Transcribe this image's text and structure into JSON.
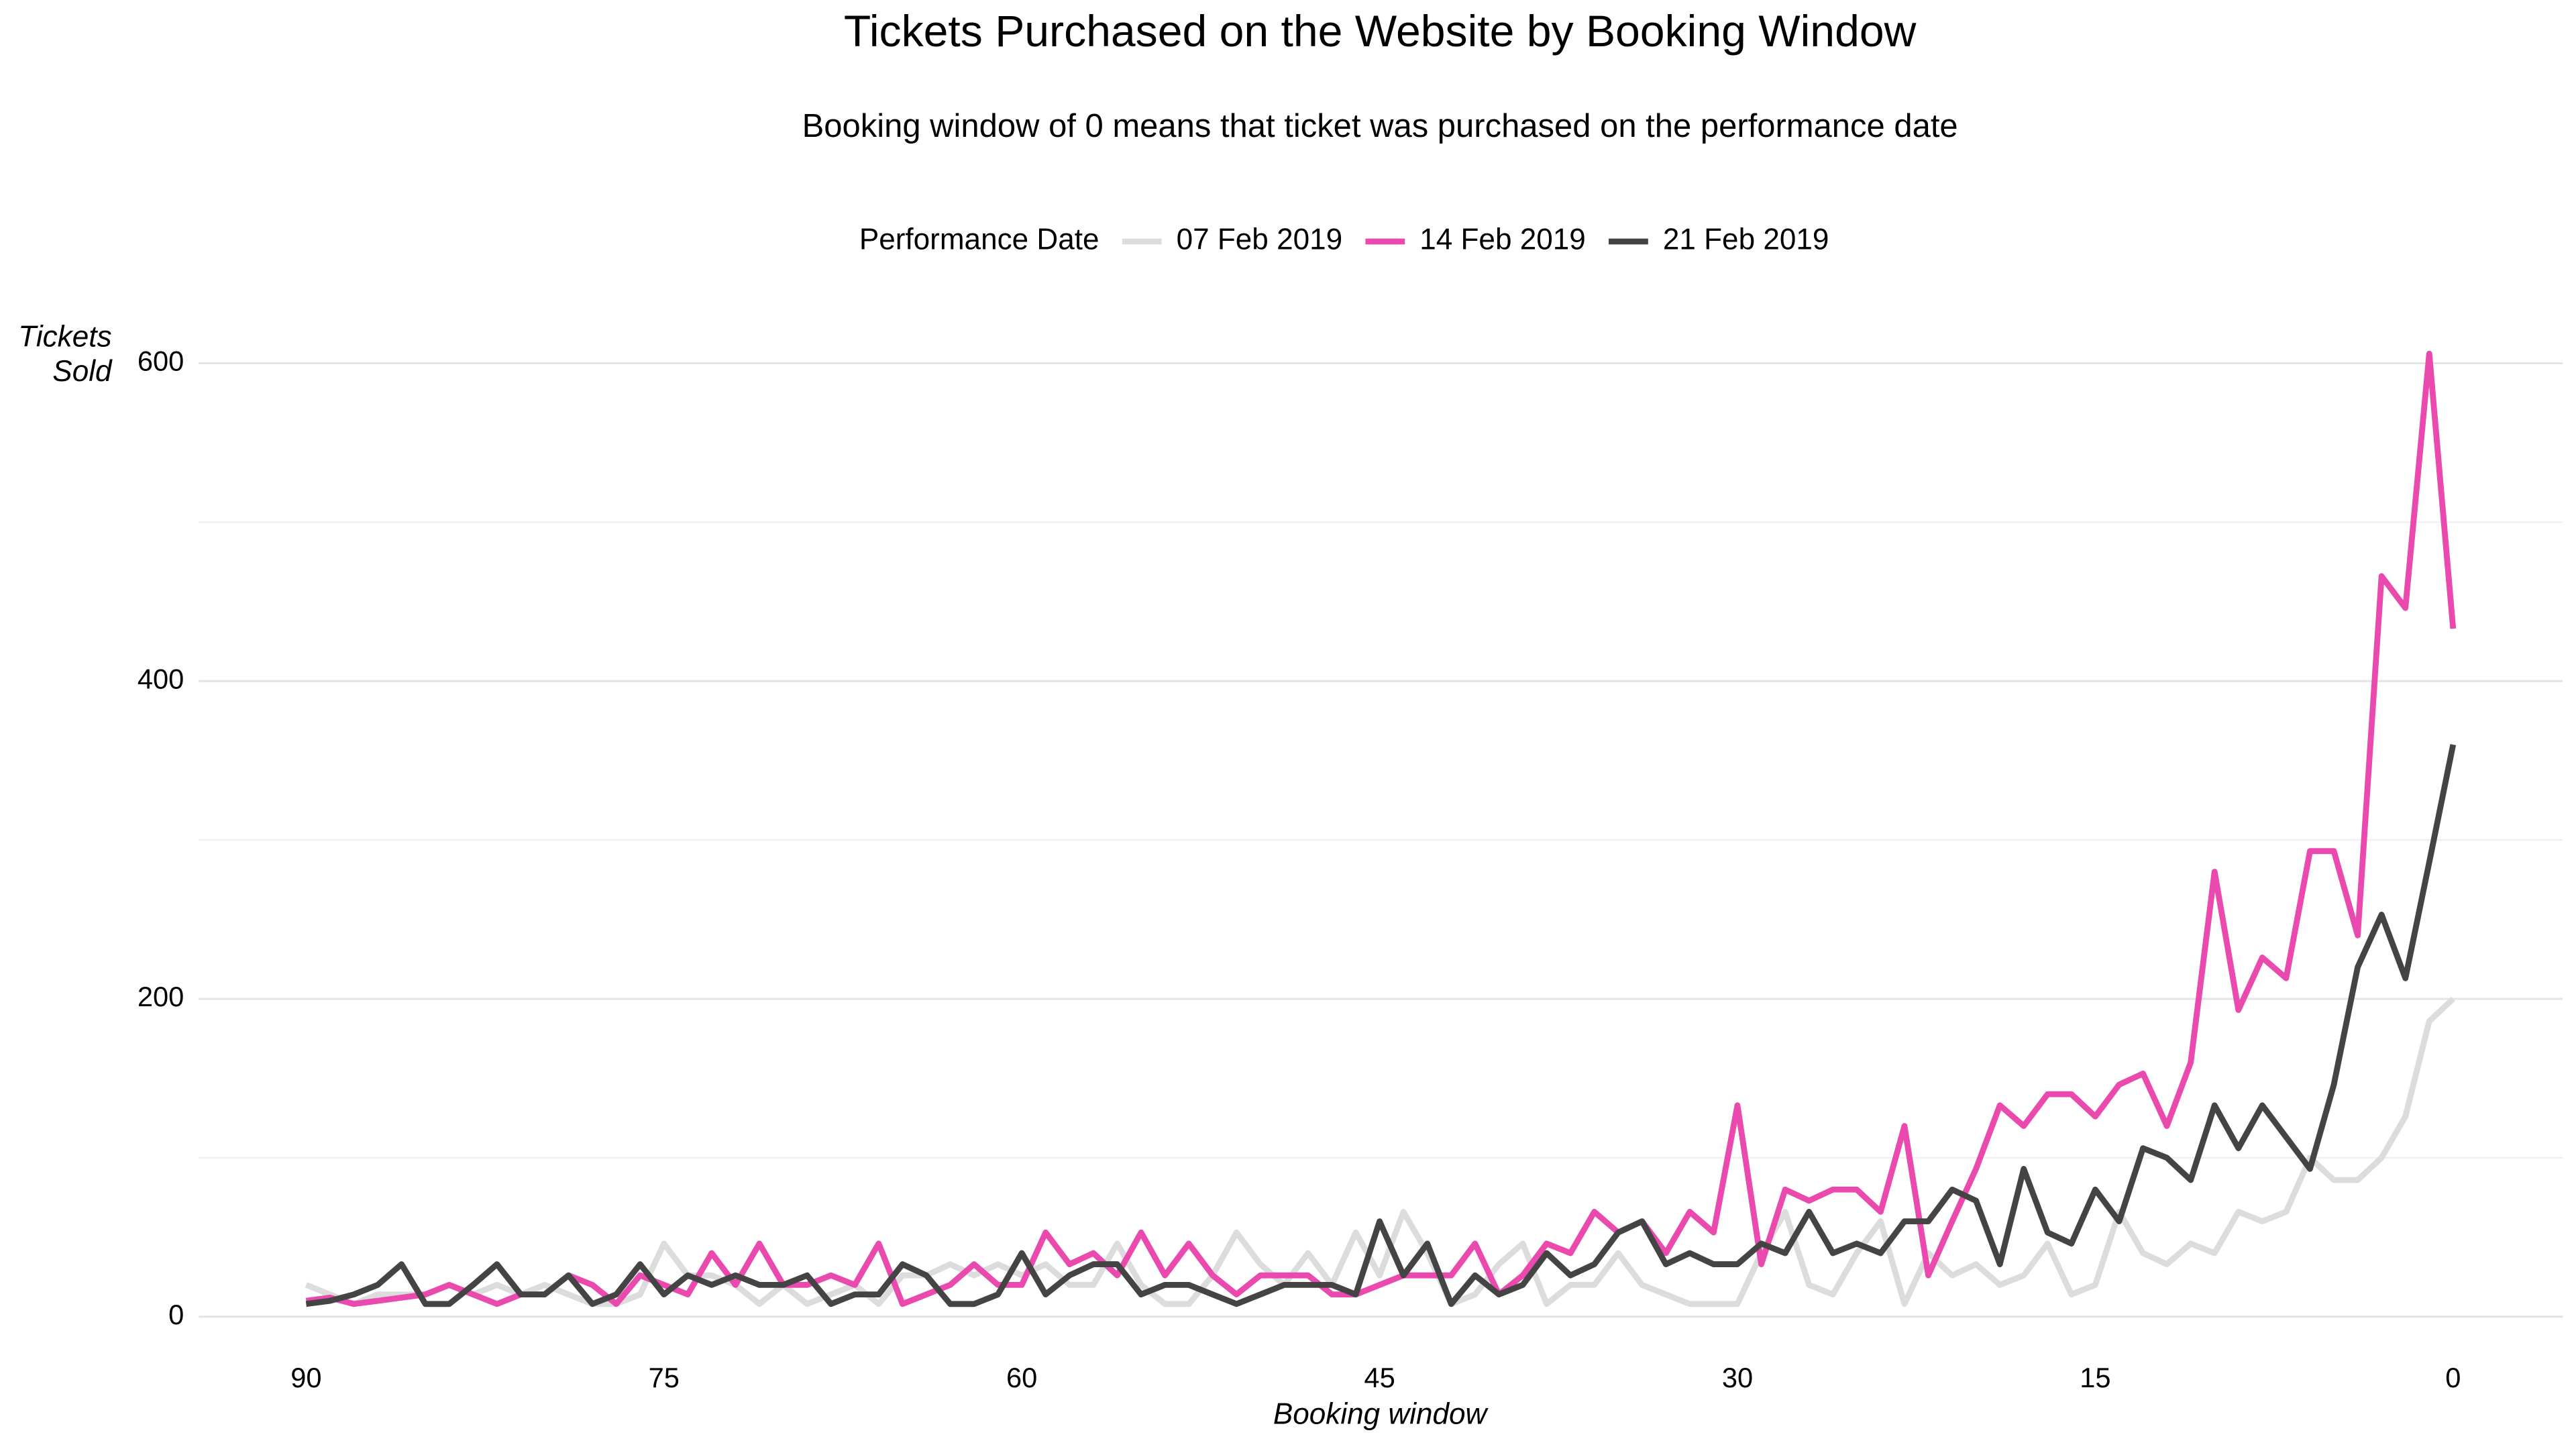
{
  "chart_data": {
    "type": "line",
    "title": "Tickets Purchased on the Website by Booking Window",
    "subtitle": "Booking window of 0 means that ticket was purchased on the performance date",
    "legend_title": "Performance Date",
    "legend_position": "top",
    "x_label": "Booking window",
    "y_label": "Tickets Sold",
    "x": [
      90,
      89,
      88,
      87,
      86,
      85,
      84,
      83,
      82,
      81,
      80,
      79,
      78,
      77,
      76,
      75,
      74,
      73,
      72,
      71,
      70,
      69,
      68,
      67,
      66,
      65,
      64,
      63,
      62,
      61,
      60,
      59,
      58,
      57,
      56,
      55,
      54,
      53,
      52,
      51,
      50,
      49,
      48,
      47,
      46,
      45,
      44,
      43,
      42,
      41,
      40,
      39,
      38,
      37,
      36,
      35,
      34,
      33,
      32,
      31,
      30,
      29,
      28,
      27,
      26,
      25,
      24,
      23,
      22,
      21,
      20,
      19,
      18,
      17,
      16,
      15,
      14,
      13,
      12,
      11,
      10,
      9,
      8,
      7,
      6,
      5,
      4,
      3,
      2,
      1,
      0
    ],
    "series": [
      {
        "name": "07 Feb 2019",
        "color": "#dcdcdc",
        "values": [
          20,
          14,
          8,
          14,
          14,
          14,
          20,
          14,
          20,
          14,
          20,
          14,
          8,
          8,
          14,
          46,
          26,
          26,
          20,
          8,
          20,
          8,
          14,
          20,
          8,
          26,
          26,
          33,
          26,
          33,
          26,
          33,
          20,
          20,
          46,
          20,
          8,
          8,
          26,
          53,
          33,
          20,
          40,
          20,
          53,
          26,
          66,
          40,
          8,
          14,
          33,
          46,
          8,
          20,
          20,
          40,
          20,
          14,
          8,
          8,
          8,
          40,
          66,
          20,
          14,
          40,
          60,
          8,
          40,
          26,
          33,
          20,
          26,
          46,
          14,
          20,
          66,
          40,
          33,
          46,
          40,
          66,
          60,
          66,
          100,
          86,
          86,
          100,
          126,
          186,
          200
        ]
      },
      {
        "name": "14 Feb 2019",
        "color": "#ea4aae",
        "values": [
          10,
          12,
          8,
          10,
          12,
          14,
          20,
          14,
          8,
          14,
          14,
          26,
          20,
          8,
          26,
          20,
          14,
          40,
          20,
          46,
          20,
          20,
          26,
          20,
          46,
          8,
          14,
          20,
          33,
          20,
          20,
          53,
          33,
          40,
          26,
          53,
          26,
          46,
          26,
          14,
          26,
          26,
          26,
          14,
          14,
          20,
          26,
          26,
          26,
          46,
          14,
          26,
          46,
          40,
          66,
          53,
          60,
          40,
          66,
          53,
          133,
          33,
          80,
          73,
          80,
          80,
          66,
          120,
          26,
          60,
          93,
          133,
          120,
          140,
          140,
          126,
          146,
          153,
          120,
          160,
          280,
          193,
          226,
          213,
          293,
          293,
          240,
          466,
          446,
          606,
          433
        ]
      },
      {
        "name": "21 Feb 2019",
        "color": "#444444",
        "values": [
          8,
          10,
          14,
          20,
          33,
          8,
          8,
          20,
          33,
          14,
          14,
          26,
          8,
          14,
          33,
          14,
          26,
          20,
          26,
          20,
          20,
          26,
          8,
          14,
          14,
          33,
          26,
          8,
          8,
          14,
          40,
          14,
          26,
          33,
          33,
          14,
          20,
          20,
          14,
          8,
          14,
          20,
          20,
          20,
          14,
          60,
          26,
          46,
          8,
          26,
          14,
          20,
          40,
          26,
          33,
          53,
          60,
          33,
          40,
          33,
          33,
          46,
          40,
          66,
          40,
          46,
          40,
          60,
          60,
          80,
          73,
          33,
          93,
          53,
          46,
          80,
          60,
          106,
          100,
          86,
          133,
          106,
          133,
          113,
          93,
          146,
          220,
          253,
          213,
          286,
          360
        ]
      }
    ],
    "xlim": [
      94.5,
      -4.6
    ],
    "xticks": [
      90,
      75,
      60,
      45,
      30,
      15,
      0
    ],
    "ylim": [
      -14,
      627
    ],
    "yticks": [
      0,
      200,
      400,
      600
    ],
    "minor_yticks": [
      100,
      300,
      500
    ],
    "grid": true
  }
}
